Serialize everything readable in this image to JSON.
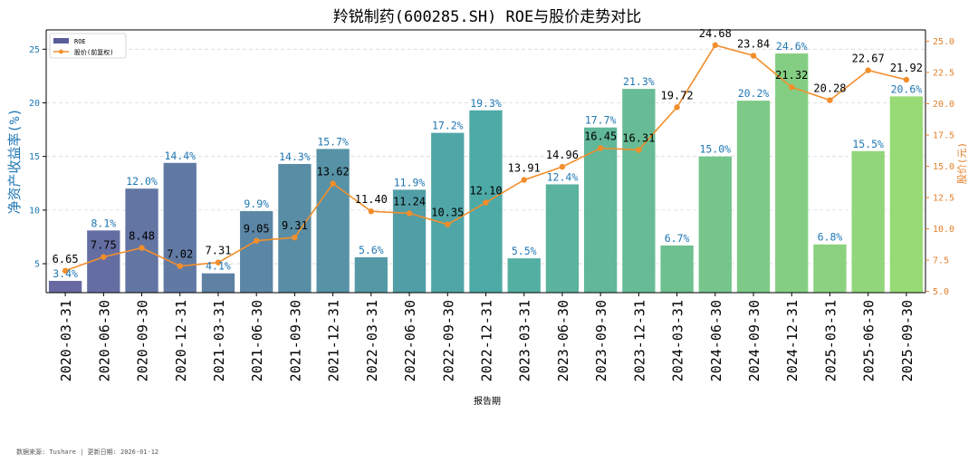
{
  "chart_data": {
    "type": "bar",
    "title": "羚锐制药(600285.SH) ROE与股价走势对比",
    "xlabel": "报告期",
    "ylabel": "净资产收益率(%)",
    "y2label": "股价(元)",
    "categories": [
      "2020-03-31",
      "2020-06-30",
      "2020-09-30",
      "2020-12-31",
      "2021-03-31",
      "2021-06-30",
      "2021-09-30",
      "2021-12-31",
      "2022-03-31",
      "2022-06-30",
      "2022-09-30",
      "2022-12-31",
      "2023-03-31",
      "2023-06-30",
      "2023-09-30",
      "2023-12-31",
      "2024-03-31",
      "2024-06-30",
      "2024-09-30",
      "2024-12-31",
      "2025-03-31",
      "2025-06-30",
      "2025-09-30"
    ],
    "series": [
      {
        "name": "ROE",
        "type": "bar",
        "axis": "left",
        "values": [
          3.4,
          8.1,
          12.0,
          14.4,
          4.1,
          9.9,
          14.3,
          15.7,
          5.6,
          11.9,
          17.2,
          19.3,
          5.5,
          12.4,
          17.7,
          21.3,
          6.7,
          15.0,
          20.2,
          24.6,
          6.8,
          15.5,
          20.6
        ],
        "labels": [
          "3.4%",
          "8.1%",
          "12.0%",
          "14.4%",
          "4.1%",
          "9.9%",
          "14.3%",
          "15.7%",
          "5.6%",
          "11.9%",
          "17.2%",
          "19.3%",
          "5.5%",
          "12.4%",
          "17.7%",
          "21.3%",
          "6.7%",
          "15.0%",
          "20.2%",
          "24.6%",
          "6.8%",
          "15.5%",
          "20.6%"
        ]
      },
      {
        "name": "股价(前复权)",
        "type": "line",
        "axis": "right",
        "values": [
          6.65,
          7.75,
          8.48,
          7.02,
          7.31,
          9.05,
          9.31,
          13.62,
          11.4,
          11.24,
          10.35,
          12.1,
          13.91,
          14.96,
          16.45,
          16.31,
          19.72,
          24.68,
          23.84,
          21.32,
          20.28,
          22.67,
          21.92
        ],
        "labels": [
          "6.65",
          "7.75",
          "8.48",
          "7.02",
          "7.31",
          "9.05",
          "9.31",
          "13.62",
          "11.40",
          "11.24",
          "10.35",
          "12.10",
          "13.91",
          "14.96",
          "16.45",
          "16.31",
          "19.72",
          "24.68",
          "23.84",
          "21.32",
          "20.28",
          "22.67",
          "21.92"
        ]
      }
    ],
    "ylim": [
      2.3,
      26.8
    ],
    "yticks": [
      5,
      10,
      15,
      20,
      25
    ],
    "ytick_labels": [
      "5",
      "10",
      "15",
      "20",
      "25"
    ],
    "y2lim": [
      4.9,
      25.9
    ],
    "y2ticks": [
      5,
      7.5,
      10,
      12.5,
      15,
      17.5,
      20,
      22.5,
      25
    ],
    "y2tick_labels": [
      "5.0",
      "7.5",
      "10.0",
      "12.5",
      "15.0",
      "17.5",
      "20.0",
      "22.5",
      "25.0"
    ],
    "legend": {
      "position": "top-left",
      "entries": [
        "ROE",
        "股价(前复权)"
      ]
    },
    "grid": true,
    "colors": {
      "bar_start": "#5b5c9a",
      "bar_mid": "#3ea3a0",
      "bar_end": "#8fd86a",
      "line": "#f28e2b",
      "left_axis": "#1f77b4",
      "right_axis": "#e3802a",
      "bar_label": "#1f77b4",
      "line_label": "#000000"
    }
  },
  "footer": "数据来源: Tushare | 更新日期: 2026-01-12"
}
